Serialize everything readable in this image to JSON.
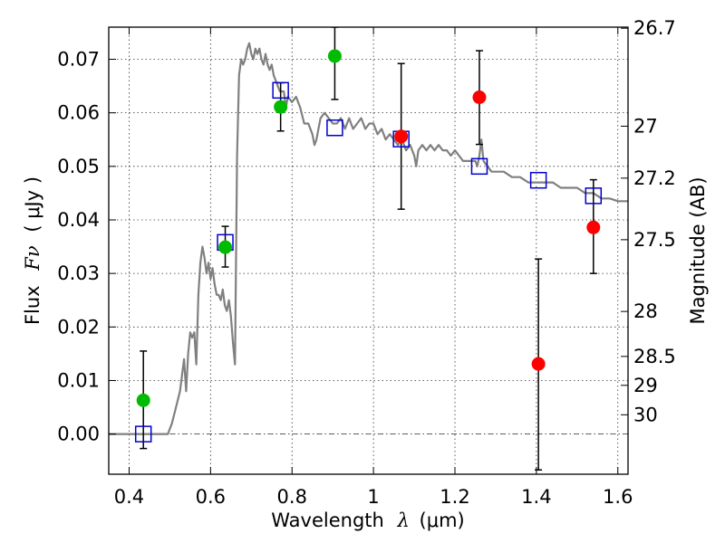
{
  "chart_data": {
    "type": "scatter",
    "title": "",
    "xlabel_text": "Wavelength",
    "xlabel_symbol": "λ",
    "xlabel_unit": "(μm)",
    "ylabel_text": "Flux",
    "ylabel_symbol": "Fν",
    "ylabel_unit": "( μJy )",
    "y2label": "Magnitude (AB)",
    "xlim": [
      0.35,
      1.625
    ],
    "ylim": [
      -0.0075,
      0.076
    ],
    "grid": true,
    "xticks": [
      0.4,
      0.6,
      0.8,
      1.0,
      1.2,
      1.4,
      1.6
    ],
    "xtick_labels": [
      "0.4",
      "0.6",
      "0.8",
      "1",
      "1.2",
      "1.4",
      "1.6"
    ],
    "yticks": [
      0.0,
      0.01,
      0.02,
      0.03,
      0.04,
      0.05,
      0.06,
      0.07
    ],
    "ytick_labels": [
      "0.00",
      "0.01",
      "0.02",
      "0.03",
      "0.04",
      "0.05",
      "0.06",
      "0.07"
    ],
    "y2ticks": [
      {
        "label": "26.7",
        "flux": 0.0758
      },
      {
        "label": "27",
        "flux": 0.0575
      },
      {
        "label": "27.2",
        "flux": 0.0478
      },
      {
        "label": "27.5",
        "flux": 0.0363
      },
      {
        "label": "28",
        "flux": 0.0229
      },
      {
        "label": "28.5",
        "flux": 0.0145
      },
      {
        "label": "29",
        "flux": 0.0091
      },
      {
        "label": "30",
        "flux": 0.0036
      }
    ],
    "colors": {
      "sed": "#808080",
      "model": "#0000cc",
      "hst": "#00bb00",
      "ir": "#ff0000",
      "errorbar": "#000000"
    },
    "series": [
      {
        "kind": "sed-line",
        "points": [
          [
            0.35,
            0.0
          ],
          [
            0.48,
            0.0
          ],
          [
            0.495,
            0.0
          ],
          [
            0.505,
            0.002
          ],
          [
            0.515,
            0.005
          ],
          [
            0.525,
            0.008
          ],
          [
            0.535,
            0.014
          ],
          [
            0.54,
            0.008
          ],
          [
            0.545,
            0.015
          ],
          [
            0.55,
            0.019
          ],
          [
            0.555,
            0.018
          ],
          [
            0.56,
            0.019
          ],
          [
            0.565,
            0.013
          ],
          [
            0.57,
            0.026
          ],
          [
            0.575,
            0.032
          ],
          [
            0.58,
            0.035
          ],
          [
            0.585,
            0.033
          ],
          [
            0.59,
            0.03
          ],
          [
            0.595,
            0.032
          ],
          [
            0.6,
            0.029
          ],
          [
            0.605,
            0.031
          ],
          [
            0.61,
            0.028
          ],
          [
            0.615,
            0.026
          ],
          [
            0.62,
            0.026
          ],
          [
            0.625,
            0.025
          ],
          [
            0.63,
            0.027
          ],
          [
            0.635,
            0.024
          ],
          [
            0.64,
            0.023
          ],
          [
            0.645,
            0.025
          ],
          [
            0.65,
            0.022
          ],
          [
            0.655,
            0.017
          ],
          [
            0.66,
            0.013
          ],
          [
            0.665,
            0.052
          ],
          [
            0.67,
            0.067
          ],
          [
            0.675,
            0.07
          ],
          [
            0.68,
            0.069
          ],
          [
            0.685,
            0.07
          ],
          [
            0.69,
            0.072
          ],
          [
            0.695,
            0.073
          ],
          [
            0.7,
            0.071
          ],
          [
            0.705,
            0.07
          ],
          [
            0.71,
            0.072
          ],
          [
            0.715,
            0.071
          ],
          [
            0.72,
            0.072
          ],
          [
            0.725,
            0.07
          ],
          [
            0.73,
            0.069
          ],
          [
            0.735,
            0.071
          ],
          [
            0.74,
            0.069
          ],
          [
            0.745,
            0.068
          ],
          [
            0.75,
            0.069
          ],
          [
            0.755,
            0.067
          ],
          [
            0.76,
            0.066
          ],
          [
            0.765,
            0.065
          ],
          [
            0.77,
            0.064
          ],
          [
            0.78,
            0.064
          ],
          [
            0.785,
            0.061
          ],
          [
            0.79,
            0.063
          ],
          [
            0.8,
            0.062
          ],
          [
            0.81,
            0.063
          ],
          [
            0.82,
            0.061
          ],
          [
            0.83,
            0.058
          ],
          [
            0.84,
            0.058
          ],
          [
            0.85,
            0.056
          ],
          [
            0.855,
            0.054
          ],
          [
            0.86,
            0.055
          ],
          [
            0.865,
            0.057
          ],
          [
            0.87,
            0.059
          ],
          [
            0.88,
            0.06
          ],
          [
            0.89,
            0.059
          ],
          [
            0.9,
            0.058
          ],
          [
            0.91,
            0.058
          ],
          [
            0.92,
            0.059
          ],
          [
            0.93,
            0.057
          ],
          [
            0.94,
            0.059
          ],
          [
            0.95,
            0.057
          ],
          [
            0.96,
            0.058
          ],
          [
            0.97,
            0.059
          ],
          [
            0.975,
            0.058
          ],
          [
            0.98,
            0.057
          ],
          [
            0.99,
            0.058
          ],
          [
            1.0,
            0.058
          ],
          [
            1.01,
            0.056
          ],
          [
            1.02,
            0.057
          ],
          [
            1.03,
            0.055
          ],
          [
            1.04,
            0.056
          ],
          [
            1.05,
            0.055
          ],
          [
            1.06,
            0.054
          ],
          [
            1.07,
            0.055
          ],
          [
            1.08,
            0.053
          ],
          [
            1.09,
            0.054
          ],
          [
            1.1,
            0.052
          ],
          [
            1.105,
            0.05
          ],
          [
            1.11,
            0.053
          ],
          [
            1.12,
            0.054
          ],
          [
            1.13,
            0.053
          ],
          [
            1.14,
            0.054
          ],
          [
            1.15,
            0.053
          ],
          [
            1.16,
            0.054
          ],
          [
            1.17,
            0.053
          ],
          [
            1.18,
            0.053
          ],
          [
            1.19,
            0.052
          ],
          [
            1.2,
            0.053
          ],
          [
            1.21,
            0.052
          ],
          [
            1.22,
            0.051
          ],
          [
            1.23,
            0.051
          ],
          [
            1.24,
            0.051
          ],
          [
            1.25,
            0.051
          ],
          [
            1.255,
            0.05
          ],
          [
            1.26,
            0.052
          ],
          [
            1.265,
            0.055
          ],
          [
            1.27,
            0.051
          ],
          [
            1.28,
            0.05
          ],
          [
            1.29,
            0.049
          ],
          [
            1.3,
            0.049
          ],
          [
            1.32,
            0.049
          ],
          [
            1.34,
            0.048
          ],
          [
            1.36,
            0.048
          ],
          [
            1.38,
            0.047
          ],
          [
            1.4,
            0.047
          ],
          [
            1.42,
            0.047
          ],
          [
            1.44,
            0.047
          ],
          [
            1.46,
            0.046
          ],
          [
            1.48,
            0.046
          ],
          [
            1.5,
            0.046
          ],
          [
            1.52,
            0.045
          ],
          [
            1.54,
            0.045
          ],
          [
            1.56,
            0.044
          ],
          [
            1.58,
            0.044
          ],
          [
            1.6,
            0.0435
          ],
          [
            1.625,
            0.0435
          ]
        ]
      },
      {
        "kind": "model-photometry",
        "marker": "open-square",
        "points": [
          [
            0.435,
            0.0
          ],
          [
            0.636,
            0.0358
          ],
          [
            0.772,
            0.0642
          ],
          [
            0.905,
            0.0572
          ],
          [
            1.068,
            0.0551
          ],
          [
            1.26,
            0.05
          ],
          [
            1.405,
            0.0474
          ],
          [
            1.54,
            0.0445
          ]
        ]
      },
      {
        "kind": "hst-optical",
        "marker": "filled-circle",
        "points": [
          {
            "x": 0.435,
            "y": 0.0063,
            "lo": -0.0027,
            "hi": 0.0155
          },
          {
            "x": 0.636,
            "y": 0.0349,
            "lo": 0.0312,
            "hi": 0.0388
          },
          {
            "x": 0.772,
            "y": 0.0611,
            "lo": 0.0566,
            "hi": 0.0656
          },
          {
            "x": 0.905,
            "y": 0.0706,
            "lo": 0.0625,
            "hi": 0.076
          }
        ]
      },
      {
        "kind": "hst-ir",
        "marker": "filled-circle",
        "points": [
          {
            "x": 1.068,
            "y": 0.0556,
            "lo": 0.042,
            "hi": 0.0692
          },
          {
            "x": 1.26,
            "y": 0.0629,
            "lo": 0.0541,
            "hi": 0.0716
          },
          {
            "x": 1.405,
            "y": 0.0131,
            "lo": -0.0067,
            "hi": 0.0327
          },
          {
            "x": 1.54,
            "y": 0.0386,
            "lo": 0.03,
            "hi": 0.0475
          }
        ]
      }
    ]
  }
}
